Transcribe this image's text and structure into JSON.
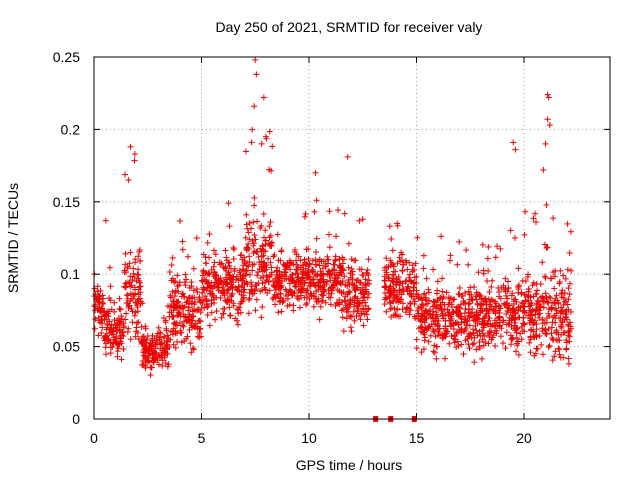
{
  "chart_data": {
    "type": "scatter",
    "title": "Day 250 of 2021, SRMTID for receiver valy",
    "xlabel": "GPS time / hours",
    "ylabel": "SRMTID / TECUs",
    "xlim": [
      0,
      24
    ],
    "ylim": [
      0,
      0.25
    ],
    "xticks": [
      0,
      5,
      10,
      15,
      20
    ],
    "xtick_labels": [
      "0",
      "5",
      "10",
      "15",
      "20"
    ],
    "yticks": [
      0,
      0.05,
      0.1,
      0.15,
      0.2,
      0.25
    ],
    "ytick_labels": [
      "0",
      "0.05",
      "0.1",
      "0.15",
      "0.2",
      "0.25"
    ],
    "grid": true,
    "marker": "+",
    "color": "#ee0000",
    "series": [
      {
        "name": "SRMTID",
        "segments": [
          {
            "t_start": 0.0,
            "t_end": 0.5,
            "mean": 0.075,
            "spread": 0.045
          },
          {
            "t_start": 0.5,
            "t_end": 1.4,
            "mean": 0.062,
            "spread": 0.045
          },
          {
            "t_start": 1.4,
            "t_end": 2.2,
            "mean": 0.09,
            "spread": 0.09
          },
          {
            "t_start": 2.2,
            "t_end": 3.5,
            "mean": 0.048,
            "spread": 0.035
          },
          {
            "t_start": 3.5,
            "t_end": 5.0,
            "mean": 0.075,
            "spread": 0.065
          },
          {
            "t_start": 5.0,
            "t_end": 7.0,
            "mean": 0.09,
            "spread": 0.06
          },
          {
            "t_start": 7.0,
            "t_end": 8.3,
            "mean": 0.11,
            "spread": 0.09
          },
          {
            "t_start": 8.3,
            "t_end": 10.0,
            "mean": 0.095,
            "spread": 0.05
          },
          {
            "t_start": 10.0,
            "t_end": 11.5,
            "mean": 0.095,
            "spread": 0.06
          },
          {
            "t_start": 11.5,
            "t_end": 12.8,
            "mean": 0.085,
            "spread": 0.06
          },
          {
            "t_start": 13.5,
            "t_end": 15.0,
            "mean": 0.09,
            "spread": 0.06
          },
          {
            "t_start": 15.0,
            "t_end": 17.0,
            "mean": 0.07,
            "spread": 0.06
          },
          {
            "t_start": 17.0,
            "t_end": 19.0,
            "mean": 0.07,
            "spread": 0.06
          },
          {
            "t_start": 19.0,
            "t_end": 20.5,
            "mean": 0.075,
            "spread": 0.075
          },
          {
            "t_start": 20.5,
            "t_end": 22.2,
            "mean": 0.07,
            "spread": 0.08
          }
        ],
        "peaks": [
          {
            "x": 1.7,
            "y": 0.188
          },
          {
            "x": 1.9,
            "y": 0.183
          },
          {
            "x": 1.6,
            "y": 0.165
          },
          {
            "x": 7.5,
            "y": 0.248
          },
          {
            "x": 7.55,
            "y": 0.238
          },
          {
            "x": 7.45,
            "y": 0.216
          },
          {
            "x": 7.9,
            "y": 0.222
          },
          {
            "x": 8.0,
            "y": 0.195
          },
          {
            "x": 7.8,
            "y": 0.19
          },
          {
            "x": 11.8,
            "y": 0.181
          },
          {
            "x": 10.3,
            "y": 0.17
          },
          {
            "x": 19.5,
            "y": 0.191
          },
          {
            "x": 19.6,
            "y": 0.186
          },
          {
            "x": 21.1,
            "y": 0.224
          },
          {
            "x": 21.15,
            "y": 0.222
          },
          {
            "x": 21.1,
            "y": 0.207
          },
          {
            "x": 21.2,
            "y": 0.203
          },
          {
            "x": 21.0,
            "y": 0.19
          },
          {
            "x": 20.9,
            "y": 0.172
          },
          {
            "x": 0.55,
            "y": 0.137
          },
          {
            "x": 12.5,
            "y": 0.138
          },
          {
            "x": 14.1,
            "y": 0.135
          },
          {
            "x": 13.1,
            "y": 0.0
          },
          {
            "x": 13.8,
            "y": 0.0
          },
          {
            "x": 14.9,
            "y": 0.0
          }
        ]
      }
    ],
    "gap_markers_x": [
      13.1,
      13.8,
      14.9
    ]
  }
}
